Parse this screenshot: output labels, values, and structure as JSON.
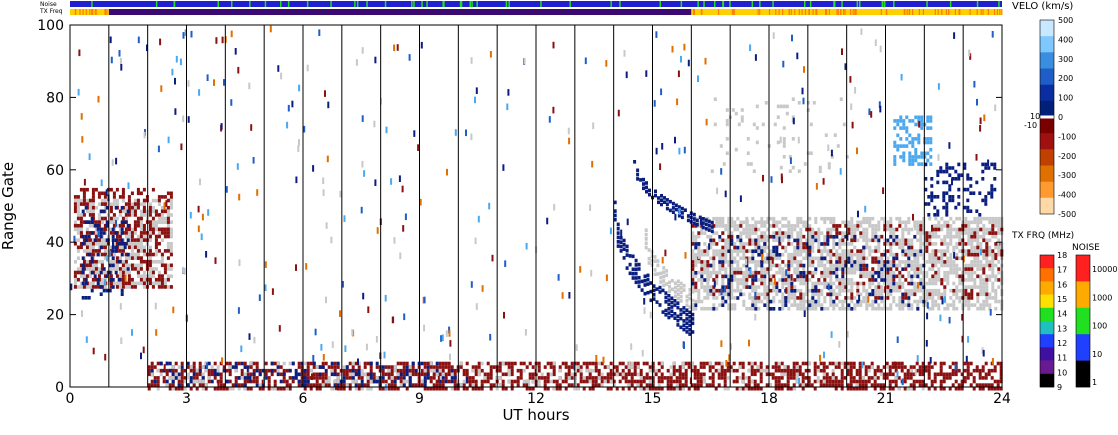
{
  "chart_data": {
    "type": "heatmap",
    "title": "",
    "xlabel": "UT hours",
    "ylabel": "Range Gate",
    "xlim": [
      0,
      24
    ],
    "ylim": [
      0,
      100
    ],
    "x_ticks": [
      0,
      3,
      6,
      9,
      12,
      15,
      18,
      21,
      24
    ],
    "y_ticks": [
      0,
      20,
      40,
      60,
      80,
      100
    ],
    "scan_boundaries_hours": [
      1,
      2,
      3,
      4,
      5,
      6,
      7,
      8,
      9,
      10,
      11,
      12,
      13,
      14,
      15,
      16,
      17,
      18,
      19,
      20,
      21,
      22,
      23
    ],
    "top_strips": [
      {
        "label": "Noise",
        "color": "#2020d0",
        "accent": "#20e020"
      },
      {
        "label": "TX Freq",
        "color": "#ffd000",
        "accent": "#ff8000",
        "segments": [
          {
            "from_hour": 0,
            "to_hour": 1,
            "color": "#ffd000"
          },
          {
            "from_hour": 1,
            "to_hour": 16,
            "color": "#3a0a70"
          },
          {
            "from_hour": 16,
            "to_hour": 24,
            "color": "#ffd000"
          }
        ]
      }
    ],
    "velocity_scale": {
      "label": "VELO (km/s)",
      "tick_labels": [
        "500",
        "400",
        "300",
        "200",
        "100",
        "0",
        "-100",
        "-200",
        "-300",
        "-400",
        "-500"
      ],
      "side_labels": [
        "10",
        "-10"
      ],
      "colors": [
        "#c8e8ff",
        "#7ec8ff",
        "#3a8ee0",
        "#1f5ec8",
        "#0a2ea0",
        "#00207a",
        "#7a0000",
        "#a01010",
        "#c04000",
        "#e07000",
        "#ff9a30",
        "#ffd8a8"
      ]
    },
    "freq_scale": {
      "label": "TX FRQ (MHz)",
      "tick_labels": [
        "18",
        "17",
        "16",
        "15",
        "14",
        "13",
        "12",
        "11",
        "10",
        "9"
      ],
      "colors": [
        "#ff2020",
        "#ff7000",
        "#ffaa00",
        "#ffe000",
        "#20e020",
        "#20c0c0",
        "#2040ff",
        "#4010a0",
        "#6a1a90",
        "#000000"
      ]
    },
    "noise_scale": {
      "label": "NOISE",
      "tick_labels": [
        "10000",
        "1000",
        "100",
        "10",
        "1"
      ],
      "colors": [
        "#ff2020",
        "#ffaa00",
        "#20e020",
        "#2040ff",
        "#000000"
      ]
    },
    "regions": [
      {
        "name": "ground-scatter-early",
        "x": [
          0.1,
          2.6
        ],
        "y": [
          28,
          52
        ],
        "color": "#c8c8c8",
        "density": 0.5
      },
      {
        "name": "neg-velocity-early",
        "x": [
          0.1,
          2.6
        ],
        "y": [
          28,
          55
        ],
        "color": "#8b1010",
        "density": 0.35
      },
      {
        "name": "pos-velocity-early",
        "x": [
          0.3,
          1.5
        ],
        "y": [
          25,
          50
        ],
        "color": "#0a1e80",
        "density": 0.2
      },
      {
        "name": "low-gate-echo",
        "x": [
          2.0,
          24.0
        ],
        "y": [
          0,
          7
        ],
        "color": "#8b1010",
        "density": 0.55
      },
      {
        "name": "low-gate-blue",
        "x": [
          2.0,
          10.0
        ],
        "y": [
          1,
          7
        ],
        "color": "#0a1e80",
        "density": 0.2
      },
      {
        "name": "low-gate-gray",
        "x": [
          2.0,
          22.0
        ],
        "y": [
          0,
          7
        ],
        "color": "#c8c8c8",
        "density": 0.12
      },
      {
        "name": "ground-scatter-afternoon",
        "x": [
          16.0,
          24.0
        ],
        "y": [
          22,
          47
        ],
        "color": "#c8c8c8",
        "density": 0.6
      },
      {
        "name": "neg-velocity-afternoon",
        "x": [
          16.0,
          24.0
        ],
        "y": [
          25,
          45
        ],
        "color": "#8b1010",
        "density": 0.14
      },
      {
        "name": "pos-velocity-afternoon",
        "x": [
          16.0,
          22.0
        ],
        "y": [
          22,
          42
        ],
        "color": "#0a1e80",
        "density": 0.1
      },
      {
        "name": "high-velocity-patch",
        "x": [
          21.2,
          22.2
        ],
        "y": [
          62,
          75
        ],
        "color": "#4aa8f0",
        "density": 0.45
      },
      {
        "name": "upper-echo-evening",
        "x": [
          22.0,
          23.8
        ],
        "y": [
          48,
          62
        ],
        "color": "#0a1e80",
        "density": 0.25
      },
      {
        "name": "upper-echo-late",
        "x": [
          16.5,
          20.0
        ],
        "y": [
          60,
          80
        ],
        "color": "#c8c8c8",
        "density": 0.08
      }
    ],
    "arcs": [
      {
        "name": "descending-blue-arc",
        "hour_start": 14.0,
        "gate_start": 49,
        "hour_end": 16.0,
        "gate_end": 18,
        "width": 7,
        "color": "#0a1e80"
      },
      {
        "name": "descending-gray-arc",
        "hour_start": 14.8,
        "gate_start": 42,
        "hour_end": 16.0,
        "gate_end": 25,
        "width": 6,
        "color": "#c8c8c8"
      },
      {
        "name": "rising-blue-arc",
        "hour_start": 14.5,
        "gate_start": 63,
        "hour_end": 16.5,
        "gate_end": 45,
        "width": 3,
        "color": "#0a1e80"
      }
    ],
    "noise_scatter": {
      "count": 420,
      "colors": [
        "#0a1e80",
        "#8b1010",
        "#c8c8c8",
        "#1f5ec8",
        "#e07000",
        "#4aa8f0"
      ]
    }
  }
}
